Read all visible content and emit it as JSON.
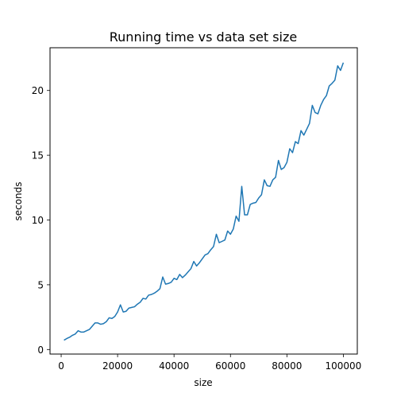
{
  "chart_data": {
    "type": "line",
    "title": "Running time vs data set size",
    "xlabel": "size",
    "ylabel": "seconds",
    "xlim": [
      -3950,
      104950
    ],
    "ylim": [
      -0.35,
      23.3
    ],
    "xticks": [
      0,
      20000,
      40000,
      60000,
      80000,
      100000
    ],
    "xtick_labels": [
      "0",
      "20000",
      "40000",
      "60000",
      "80000",
      "100000"
    ],
    "yticks": [
      0,
      5,
      10,
      15,
      20
    ],
    "ytick_labels": [
      "0",
      "5",
      "10",
      "15",
      "20"
    ],
    "grid": false,
    "legend": "none",
    "series": [
      {
        "color": "#1f77b4",
        "x": [
          1000,
          2000,
          3000,
          4000,
          5000,
          6000,
          7000,
          8000,
          9000,
          10000,
          11000,
          12000,
          13000,
          14000,
          15000,
          16000,
          17000,
          18000,
          19000,
          20000,
          21000,
          22000,
          23000,
          24000,
          25000,
          26000,
          27000,
          28000,
          29000,
          30000,
          31000,
          32000,
          33000,
          34000,
          35000,
          36000,
          37000,
          38000,
          39000,
          40000,
          41000,
          42000,
          43000,
          44000,
          45000,
          46000,
          47000,
          48000,
          49000,
          50000,
          51000,
          52000,
          53000,
          54000,
          55000,
          56000,
          57000,
          58000,
          59000,
          60000,
          61000,
          62000,
          63000,
          64000,
          65000,
          66000,
          67000,
          68000,
          69000,
          70000,
          71000,
          72000,
          73000,
          74000,
          75000,
          76000,
          77000,
          78000,
          79000,
          80000,
          81000,
          82000,
          83000,
          84000,
          85000,
          86000,
          87000,
          88000,
          89000,
          90000,
          91000,
          92000,
          93000,
          94000,
          95000,
          96000,
          97000,
          98000,
          99000,
          100000
        ],
        "y": [
          0.72,
          0.85,
          0.95,
          1.1,
          1.2,
          1.45,
          1.35,
          1.35,
          1.45,
          1.55,
          1.8,
          2.05,
          2.05,
          1.95,
          2.0,
          2.15,
          2.45,
          2.4,
          2.55,
          2.9,
          3.45,
          2.9,
          2.95,
          3.2,
          3.25,
          3.3,
          3.5,
          3.65,
          3.95,
          3.9,
          4.2,
          4.25,
          4.35,
          4.5,
          4.7,
          5.6,
          5.05,
          5.1,
          5.2,
          5.5,
          5.4,
          5.8,
          5.55,
          5.75,
          6.0,
          6.25,
          6.8,
          6.45,
          6.7,
          7.0,
          7.3,
          7.4,
          7.7,
          7.95,
          8.9,
          8.25,
          8.35,
          8.45,
          9.15,
          8.9,
          9.3,
          10.3,
          9.9,
          12.6,
          10.4,
          10.4,
          11.2,
          11.3,
          11.35,
          11.7,
          11.95,
          13.1,
          12.65,
          12.6,
          13.1,
          13.3,
          14.6,
          13.9,
          14.05,
          14.45,
          15.5,
          15.2,
          16.05,
          15.9,
          16.9,
          16.55,
          17.0,
          17.45,
          18.85,
          18.3,
          18.2,
          18.85,
          19.3,
          19.6,
          20.35,
          20.55,
          20.8,
          21.9,
          21.55,
          22.15
        ]
      }
    ]
  }
}
